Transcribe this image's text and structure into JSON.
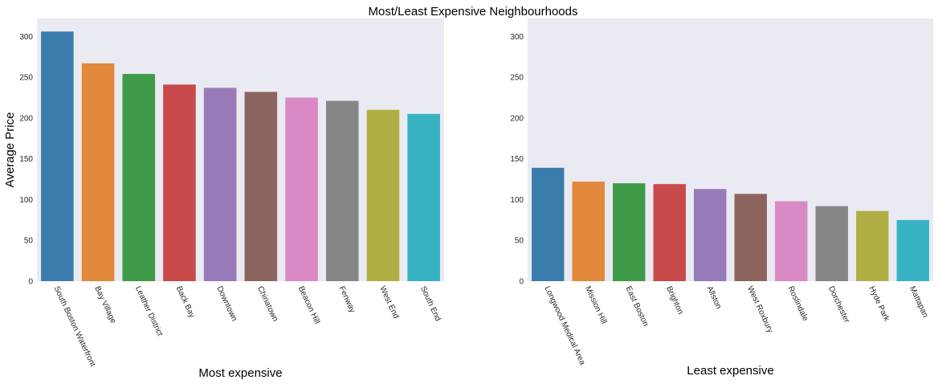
{
  "suptitle": "Most/Least Expensive Neighbourhoods",
  "palette": [
    "#3a7dad",
    "#e1883a",
    "#3f9b48",
    "#c84a4b",
    "#997ab8",
    "#8c645e",
    "#d98ac4",
    "#868686",
    "#b1af43",
    "#36b2c3"
  ],
  "chart_data": [
    {
      "type": "bar",
      "title": "",
      "xlabel": "Most expensive",
      "ylabel": "Average Price",
      "ylim": [
        0,
        322
      ],
      "yticks": [
        0,
        50,
        100,
        150,
        200,
        250,
        300
      ],
      "categories": [
        "South Boston Waterfront",
        "Bay Village",
        "Leather District",
        "Back Bay",
        "Downtown",
        "Chinatown",
        "Beacon Hill",
        "Fenway",
        "West End",
        "South End"
      ],
      "values": [
        306,
        267,
        254,
        241,
        237,
        232,
        225,
        221,
        210,
        205
      ]
    },
    {
      "type": "bar",
      "title": "",
      "xlabel": "Least expensive",
      "ylabel": "",
      "ylim": [
        0,
        322
      ],
      "yticks": [
        0,
        50,
        100,
        150,
        200,
        250,
        300
      ],
      "categories": [
        "Longwood Medical Area",
        "Mission Hill",
        "East Boston",
        "Brighton",
        "Allston",
        "West Roxbury",
        "Roslindale",
        "Dorchester",
        "Hyde Park",
        "Mattapan"
      ],
      "values": [
        139,
        122,
        120,
        119,
        113,
        107,
        98,
        92,
        86,
        75
      ]
    }
  ]
}
